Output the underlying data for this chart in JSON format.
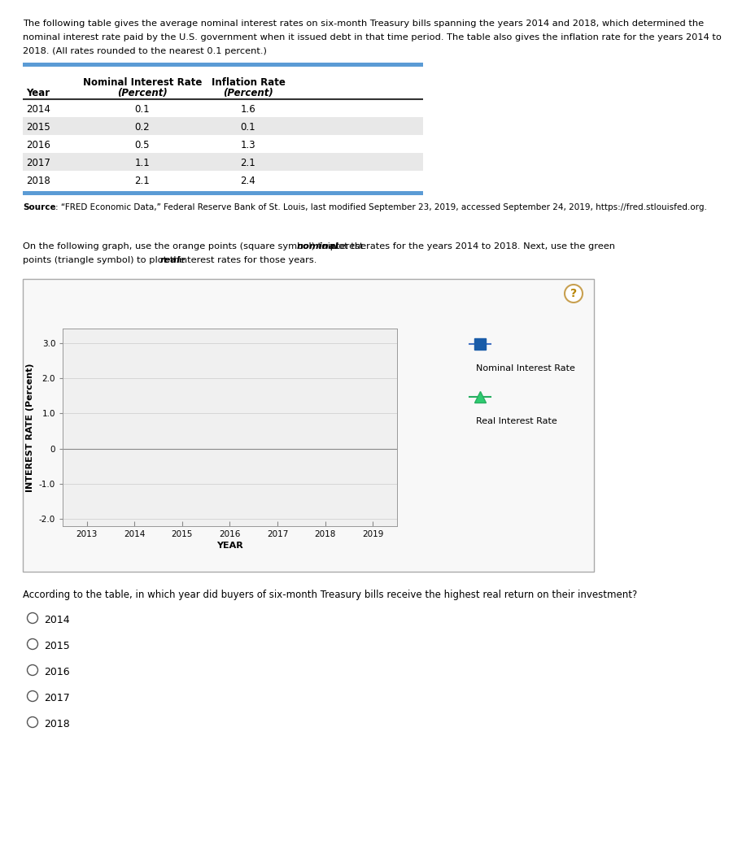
{
  "intro_lines": [
    "The following table gives the average nominal interest rates on six-month Treasury bills spanning the years 2014 and 2018, which determined the",
    "nominal interest rate paid by the U.S. government when it issued debt in that time period. The table also gives the inflation rate for the years 2014 to",
    "2018. (All rates rounded to the nearest 0.1 percent.)"
  ],
  "table_col1_header": "Nominal Interest Rate",
  "table_col2_header": "Inflation Rate",
  "table_subheader": "(Percent)",
  "table_years": [
    "2014",
    "2015",
    "2016",
    "2017",
    "2018"
  ],
  "table_nominal": [
    0.1,
    0.2,
    0.5,
    1.1,
    2.1
  ],
  "table_inflation": [
    1.6,
    0.1,
    1.3,
    2.1,
    2.4
  ],
  "source_bold": "Source",
  "source_rest": ": “FRED Economic Data,” Federal Reserve Bank of St. Louis, last modified September 23, 2019, accessed September 24, 2019, https://fred.stlouisfed.org.",
  "instr_line1": "On the following graph, use the orange points (square symbol) to plot the ",
  "instr_line1_bold": "nominal",
  "instr_line1_end": " interest rates for the years 2014 to 2018. Next, use the green",
  "instr_line2_start": "points (triangle symbol) to plot the ",
  "instr_line2_bold": "real",
  "instr_line2_end": " interest rates for those years.",
  "graph_xlabel": "YEAR",
  "graph_ylabel": "INTEREST RATE (Percent)",
  "graph_xlim": [
    2012.5,
    2019.5
  ],
  "graph_ylim": [
    -2.2,
    3.4
  ],
  "graph_yticks": [
    -2.0,
    -1.0,
    0,
    1.0,
    2.0,
    3.0
  ],
  "graph_ytick_labels": [
    "-2.0",
    "-1.0",
    "0",
    "1.0",
    "2.0",
    "3.0"
  ],
  "graph_xticks": [
    2013,
    2014,
    2015,
    2016,
    2017,
    2018,
    2019
  ],
  "legend_nominal_label": "Nominal Interest Rate",
  "legend_real_label": "Real Interest Rate",
  "nominal_color": "#1a5ca8",
  "nominal_line_color": "#4472c4",
  "real_color": "#2ecc71",
  "real_edge_color": "#27ae60",
  "question_text": "According to the table, in which year did buyers of six-month Treasury bills receive the highest real return on their investment?",
  "choices": [
    "2014",
    "2015",
    "2016",
    "2017",
    "2018"
  ],
  "stripe_color": "#e8e8e8",
  "header_bar_color": "#5b9bd5",
  "bg_color": "#ffffff"
}
